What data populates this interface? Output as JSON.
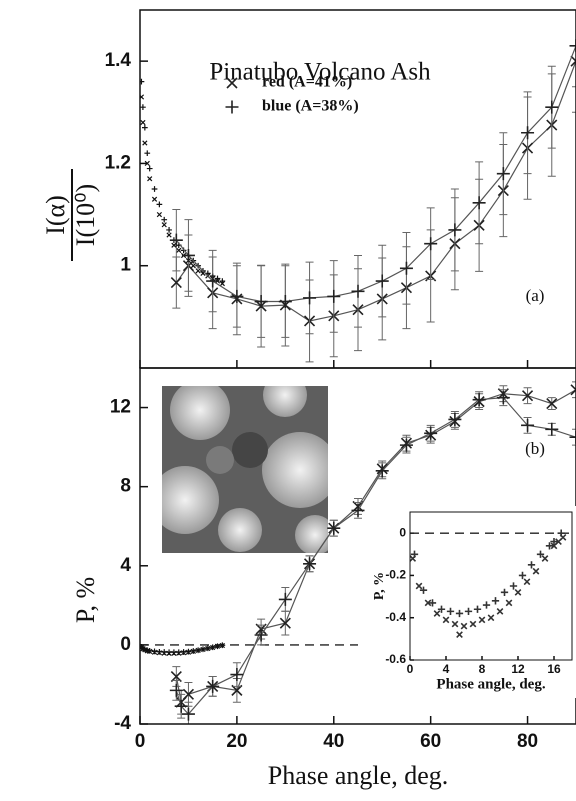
{
  "chart_data": [
    {
      "type": "line",
      "title": "Pinatubo Volcano Ash",
      "panel_label": "(a)",
      "y_numerator": "I(α)",
      "y_denominator": "I(10⁰)",
      "xlim": [
        0,
        90
      ],
      "ylim": [
        0.8,
        1.5
      ],
      "xticks": [
        0,
        20,
        40,
        60,
        80
      ],
      "xtick_labels": false,
      "yticks": [
        1,
        1.2,
        1.4
      ],
      "series": [
        {
          "name": "red (A=41%)",
          "marker": "cross",
          "color": "#222222",
          "x": [
            7.5,
            10,
            15,
            20,
            25,
            30,
            35,
            40,
            45,
            50,
            55,
            60,
            65,
            70,
            75,
            80,
            85,
            90
          ],
          "values": [
            0.967,
            1.0,
            0.947,
            0.935,
            0.921,
            0.923,
            0.892,
            0.902,
            0.914,
            0.935,
            0.957,
            0.98,
            1.043,
            1.079,
            1.147,
            1.23,
            1.275,
            1.4
          ],
          "errors": [
            0.05,
            0.06,
            0.07,
            0.07,
            0.08,
            0.08,
            0.08,
            0.08,
            0.08,
            0.08,
            0.08,
            0.09,
            0.09,
            0.09,
            0.09,
            0.1,
            0.1,
            0.1
          ]
        },
        {
          "name": "blue (A=38%)",
          "marker": "plus",
          "color": "#222222",
          "x": [
            7.5,
            10,
            15,
            20,
            25,
            30,
            35,
            40,
            45,
            50,
            55,
            60,
            65,
            70,
            75,
            80,
            85,
            90
          ],
          "values": [
            1.05,
            1.02,
            0.97,
            0.94,
            0.93,
            0.93,
            0.937,
            0.94,
            0.95,
            0.97,
            0.995,
            1.043,
            1.07,
            1.123,
            1.18,
            1.26,
            1.31,
            1.43
          ],
          "errors": [
            0.06,
            0.07,
            0.06,
            0.06,
            0.07,
            0.07,
            0.07,
            0.07,
            0.07,
            0.07,
            0.07,
            0.07,
            0.08,
            0.08,
            0.08,
            0.08,
            0.08,
            0.08
          ]
        }
      ],
      "dense_series": [
        {
          "marker": "cross",
          "x": [
            0.3,
            0.6,
            1,
            1.5,
            2,
            3,
            4,
            5,
            6,
            7,
            8,
            9,
            10,
            11,
            12,
            13,
            14,
            15,
            16,
            17
          ],
          "values": [
            1.33,
            1.28,
            1.24,
            1.2,
            1.17,
            1.13,
            1.1,
            1.08,
            1.06,
            1.04,
            1.03,
            1.02,
            1.01,
            1.0,
            0.99,
            0.985,
            0.98,
            0.975,
            0.97,
            0.965
          ]
        },
        {
          "marker": "plus",
          "x": [
            0.3,
            0.6,
            1,
            1.5,
            2,
            3,
            4,
            5,
            6,
            7,
            8,
            9,
            10,
            11,
            12,
            13,
            14,
            15,
            16,
            17
          ],
          "values": [
            1.36,
            1.31,
            1.27,
            1.22,
            1.19,
            1.15,
            1.12,
            1.09,
            1.07,
            1.05,
            1.04,
            1.03,
            1.02,
            1.01,
            1.0,
            0.99,
            0.985,
            0.98,
            0.975,
            0.97
          ]
        }
      ]
    },
    {
      "type": "line",
      "panel_label": "(b)",
      "xlabel": "Phase angle, deg.",
      "ylabel": "P, %",
      "xlim": [
        0,
        90
      ],
      "ylim": [
        -4,
        14
      ],
      "xticks": [
        0,
        20,
        40,
        60,
        80
      ],
      "yticks": [
        -4,
        0,
        4,
        8,
        12
      ],
      "reference_line": {
        "y": 0,
        "x": [
          0,
          45
        ]
      },
      "series": [
        {
          "marker": "cross",
          "color": "#222222",
          "x": [
            7.5,
            8.5,
            10,
            15,
            20,
            25,
            30,
            35,
            40,
            45,
            50,
            55,
            60,
            65,
            70,
            75,
            80,
            85,
            90
          ],
          "values": [
            -1.6,
            -2.9,
            -2.5,
            -2.1,
            -2.3,
            0.8,
            1.1,
            4.1,
            5.9,
            7.0,
            8.9,
            10.2,
            10.6,
            11.3,
            12.3,
            12.7,
            12.6,
            12.2,
            12.9
          ],
          "errors": [
            0.5,
            0.6,
            0.6,
            0.5,
            0.6,
            0.5,
            0.6,
            0.4,
            0.4,
            0.4,
            0.4,
            0.4,
            0.4,
            0.4,
            0.4,
            0.4,
            0.4,
            0.3,
            0.4
          ]
        },
        {
          "marker": "plus",
          "color": "#222222",
          "x": [
            7.5,
            8.5,
            10,
            15,
            20,
            25,
            30,
            35,
            40,
            45,
            50,
            55,
            60,
            65,
            70,
            75,
            80,
            85,
            90
          ],
          "values": [
            -2.3,
            -3.1,
            -3.5,
            -2.1,
            -1.5,
            0.5,
            2.3,
            4.1,
            5.9,
            6.8,
            8.8,
            10.1,
            10.7,
            11.4,
            12.4,
            12.5,
            11.1,
            10.9,
            10.5
          ],
          "errors": [
            0.5,
            0.6,
            0.6,
            0.5,
            0.6,
            0.5,
            0.6,
            0.4,
            0.4,
            0.4,
            0.4,
            0.4,
            0.4,
            0.4,
            0.4,
            0.4,
            0.4,
            0.3,
            0.4
          ]
        }
      ],
      "dense_series": [
        {
          "marker": "cross",
          "x": [
            0.3,
            0.6,
            1,
            1.5,
            2,
            3,
            4,
            5,
            6,
            7,
            8,
            9,
            10,
            11,
            12,
            13,
            14,
            15,
            16,
            17
          ],
          "values": [
            -0.12,
            -0.2,
            -0.25,
            -0.3,
            -0.33,
            -0.37,
            -0.4,
            -0.42,
            -0.43,
            -0.43,
            -0.42,
            -0.4,
            -0.37,
            -0.33,
            -0.28,
            -0.23,
            -0.18,
            -0.13,
            -0.07,
            -0.03
          ]
        },
        {
          "marker": "plus",
          "x": [
            0.3,
            0.6,
            1,
            1.5,
            2,
            3,
            4,
            5,
            6,
            7,
            8,
            9,
            10,
            11,
            12,
            13,
            14,
            15,
            16,
            17
          ],
          "values": [
            -0.1,
            -0.18,
            -0.22,
            -0.27,
            -0.3,
            -0.33,
            -0.35,
            -0.36,
            -0.37,
            -0.37,
            -0.37,
            -0.36,
            -0.34,
            -0.31,
            -0.27,
            -0.22,
            -0.17,
            -0.12,
            -0.07,
            -0.02
          ]
        }
      ]
    },
    {
      "type": "scatter",
      "xlabel": "Phase angle, deg.",
      "ylabel": "P, %",
      "xlim": [
        0,
        18
      ],
      "ylim": [
        -0.6,
        0.1
      ],
      "xticks": [
        0,
        4,
        8,
        12,
        16
      ],
      "yticks": [
        -0.6,
        -0.4,
        -0.2,
        0
      ],
      "reference_line": {
        "y": 0
      },
      "series": [
        {
          "marker": "cross",
          "color": "#333333",
          "x": [
            0.3,
            1,
            2,
            3,
            4,
            5,
            5.5,
            6,
            7,
            8,
            9,
            10,
            11,
            12,
            13,
            14,
            15,
            16,
            16.5,
            17
          ],
          "values": [
            -0.12,
            -0.25,
            -0.33,
            -0.38,
            -0.41,
            -0.43,
            -0.48,
            -0.44,
            -0.43,
            -0.41,
            -0.4,
            -0.37,
            -0.33,
            -0.28,
            -0.23,
            -0.18,
            -0.12,
            -0.06,
            -0.04,
            -0.02
          ]
        },
        {
          "marker": "plus",
          "color": "#333333",
          "x": [
            0.5,
            1.5,
            2.5,
            3.5,
            4.5,
            5.5,
            6.5,
            7.5,
            8.5,
            9.5,
            10.5,
            11.5,
            12.5,
            13.5,
            14.5,
            15.5,
            16,
            16.8
          ],
          "values": [
            -0.1,
            -0.27,
            -0.33,
            -0.36,
            -0.37,
            -0.38,
            -0.37,
            -0.36,
            -0.34,
            -0.32,
            -0.28,
            -0.25,
            -0.2,
            -0.15,
            -0.1,
            -0.06,
            -0.04,
            0
          ]
        }
      ]
    }
  ]
}
